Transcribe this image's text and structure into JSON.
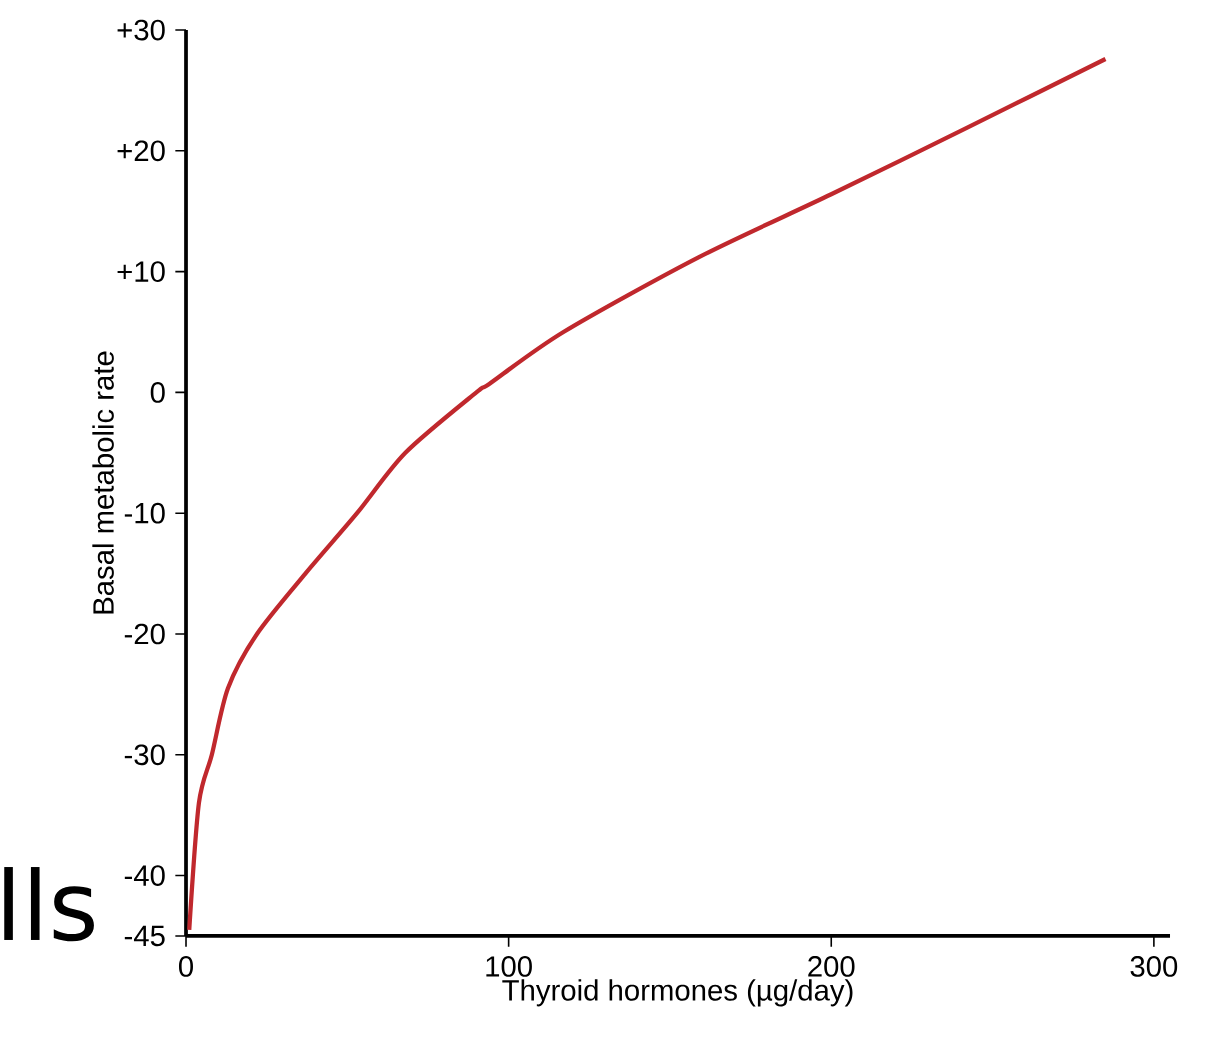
{
  "chart_data": {
    "type": "line",
    "xlabel": "Thyroid hormones (µg/day)",
    "ylabel": "Basal metabolic rate",
    "x": [
      1,
      4,
      8,
      13,
      22,
      37,
      53,
      68,
      90,
      94,
      117,
      159,
      200,
      242,
      285
    ],
    "series": [
      {
        "color": "#c0282d",
        "values": [
          -44.5,
          -34,
          -30,
          -24.5,
          -20,
          -15,
          -10,
          -5,
          0,
          0.7,
          5,
          11.2,
          16.4,
          21.9,
          27.6
        ]
      }
    ],
    "xlim": [
      0,
      305
    ],
    "ylim": [
      -45,
      30
    ],
    "xticks": [
      0,
      100,
      200,
      300
    ],
    "yticks": [
      {
        "value": 30,
        "label": "+30"
      },
      {
        "value": 20,
        "label": "+20"
      },
      {
        "value": 10,
        "label": "+10"
      },
      0,
      -10,
      -20,
      -30,
      -40,
      -45
    ],
    "marker": "none",
    "line_style": "solid",
    "annotations": [
      "lls"
    ]
  }
}
